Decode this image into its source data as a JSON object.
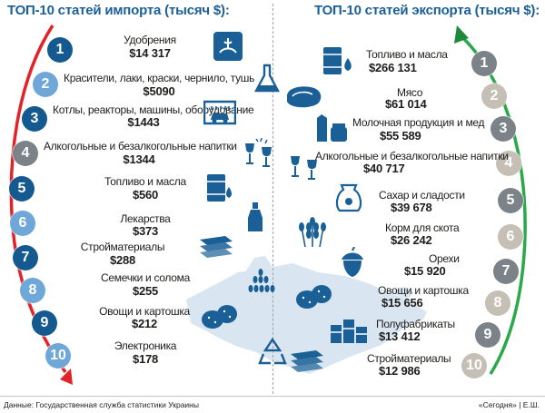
{
  "titles": {
    "import": "ТОП-10 статей импорта (тысяч $):",
    "export": "ТОП-10 статей экспорта (тысяч $):"
  },
  "import": [
    {
      "rank": "1",
      "name": "Удобрения",
      "value": "$14 317",
      "icon": "fertilizer-icon"
    },
    {
      "rank": "2",
      "name": "Красители, лаки, краски, чернило, тушь",
      "value": "$5090",
      "icon": "flask-icon"
    },
    {
      "rank": "3",
      "name": "Котлы, реакторы, машины, оборудование",
      "value": "$1443",
      "icon": "car-wash-icon"
    },
    {
      "rank": "4",
      "name": "Алкогольные и безалкогольные напитки",
      "value": "$1344",
      "icon": "wine-glasses-icon"
    },
    {
      "rank": "5",
      "name": "Топливо и масла",
      "value": "$560",
      "icon": "fuel-barrel-icon"
    },
    {
      "rank": "6",
      "name": "Лекарства",
      "value": "$373",
      "icon": "medicine-bottle-icon"
    },
    {
      "rank": "7",
      "name": "Стройматериалы",
      "value": "$288",
      "icon": "building-panels-icon"
    },
    {
      "rank": "8",
      "name": "Семечки и солома",
      "value": "$255",
      "icon": "seeds-icon"
    },
    {
      "rank": "9",
      "name": "Овощи и картошка",
      "value": "$212",
      "icon": "potatoes-icon"
    },
    {
      "rank": "10",
      "name": "Электроника",
      "value": "$178",
      "icon": "recycle-icon"
    }
  ],
  "export": [
    {
      "rank": "1",
      "name": "Топливо и масла",
      "value": "$266 131",
      "icon": "fuel-barrel-icon"
    },
    {
      "rank": "2",
      "name": "Мясо",
      "value": "$61 014",
      "icon": "steak-icon"
    },
    {
      "rank": "3",
      "name": "Молочная продукция и мед",
      "value": "$55 589",
      "icon": "dairy-honey-icon"
    },
    {
      "rank": "4",
      "name": "Алкогольные и безалкогольные напитки",
      "value": "$40 717",
      "icon": "wine-glasses-icon"
    },
    {
      "rank": "5",
      "name": "Сахар и сладости",
      "value": "$39 678",
      "icon": "sugar-sack-icon"
    },
    {
      "rank": "6",
      "name": "Корм для скота",
      "value": "$26 242",
      "icon": "wheat-icon"
    },
    {
      "rank": "7",
      "name": "Орехи",
      "value": "$15 920",
      "icon": "acorn-icon"
    },
    {
      "rank": "8",
      "name": "Овощи и картошка",
      "value": "$15 656",
      "icon": "potatoes-icon"
    },
    {
      "rank": "9",
      "name": "Полуфабрикаты",
      "value": "$13 412",
      "icon": "canned-food-icon"
    },
    {
      "rank": "10",
      "name": "Стройматериалы",
      "value": "$12 986",
      "icon": "building-panels-icon"
    }
  ],
  "footer": {
    "source": "Данные: Государственная служба статистики Украины",
    "credit": "«Сегодня» | Е.Ш."
  },
  "colors": {
    "blue_dark": "#14598f",
    "blue_light": "#6ea7d8",
    "grey": "#7b8288",
    "grey_light": "#c5bfb6",
    "red": "#e1242a",
    "green": "#2aa84a",
    "map": "#d9e6f2"
  }
}
